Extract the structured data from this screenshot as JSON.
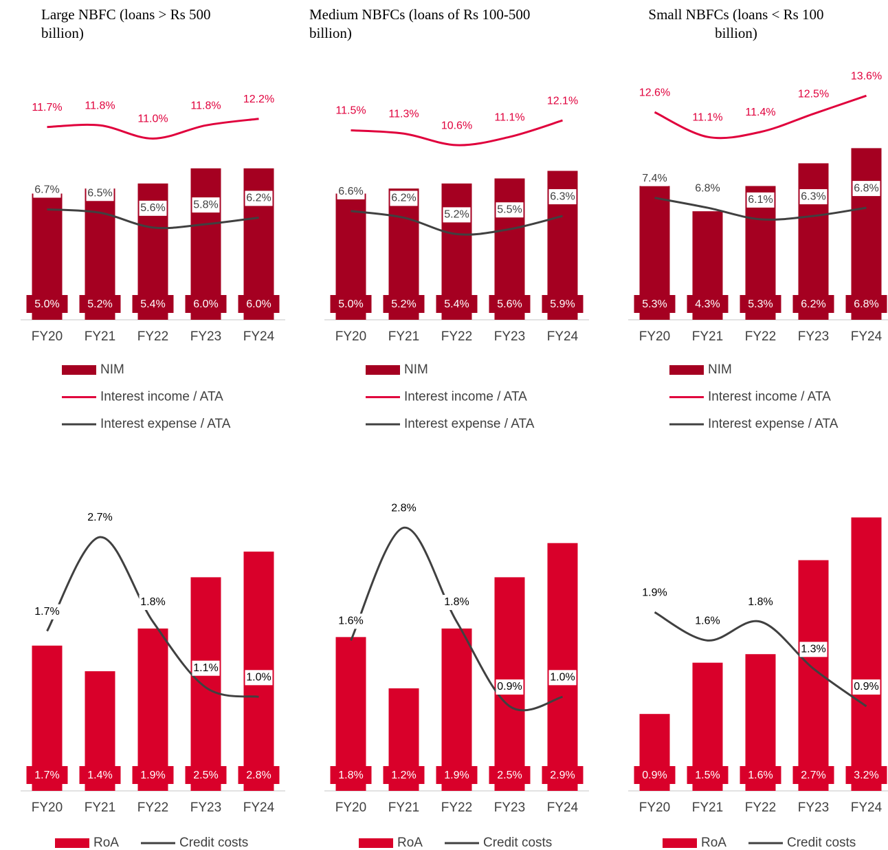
{
  "chart_data": [
    {
      "type": "bar",
      "title": "Large NBFC (loans > Rs 500 billion)",
      "categories": [
        "FY20",
        "FY21",
        "FY22",
        "FY23",
        "FY24"
      ],
      "ylim": [
        0,
        9.4
      ],
      "y2lim": [
        0,
        14.4
      ],
      "series": [
        {
          "name": "NIM",
          "type": "bar",
          "color": "#a50021",
          "values": [
            5.0,
            5.2,
            5.4,
            6.0,
            6.0
          ],
          "value_labels": [
            "5.0%",
            "5.2%",
            "5.4%",
            "6.0%",
            "6.0%"
          ]
        },
        {
          "name": "Interest income / ATA",
          "type": "line",
          "axis": "y2",
          "color": "#e0003c",
          "values": [
            11.7,
            11.8,
            11.0,
            11.8,
            12.2
          ],
          "value_labels": [
            "11.7%",
            "11.8%",
            "11.0%",
            "11.8%",
            "12.2%"
          ]
        },
        {
          "name": "Interest expense / ATA",
          "type": "line",
          "axis": "y2",
          "color": "#404040",
          "values": [
            6.7,
            6.5,
            5.6,
            5.8,
            6.2
          ],
          "value_labels": [
            "6.7%",
            "6.5%",
            "5.6%",
            "5.8%",
            "6.2%"
          ]
        }
      ]
    },
    {
      "type": "bar",
      "title": "Medium NBFCs (loans of Rs 100-500 billion)",
      "categories": [
        "FY20",
        "FY21",
        "FY22",
        "FY23",
        "FY24"
      ],
      "ylim": [
        0,
        9.4
      ],
      "y2lim": [
        0,
        14.4
      ],
      "series": [
        {
          "name": "NIM",
          "type": "bar",
          "color": "#a50021",
          "values": [
            5.0,
            5.2,
            5.4,
            5.6,
            5.9
          ],
          "value_labels": [
            "5.0%",
            "5.2%",
            "5.4%",
            "5.6%",
            "5.9%"
          ]
        },
        {
          "name": "Interest income / ATA",
          "type": "line",
          "axis": "y2",
          "color": "#e0003c",
          "values": [
            11.5,
            11.3,
            10.6,
            11.1,
            12.1
          ],
          "value_labels": [
            "11.5%",
            "11.3%",
            "10.6%",
            "11.1%",
            "12.1%"
          ]
        },
        {
          "name": "Interest expense / ATA",
          "type": "line",
          "axis": "y2",
          "color": "#404040",
          "values": [
            6.6,
            6.2,
            5.2,
            5.5,
            6.3
          ],
          "value_labels": [
            "6.6%",
            "6.2%",
            "5.2%",
            "5.5%",
            "6.3%"
          ]
        }
      ]
    },
    {
      "type": "bar",
      "title": "Small NBFCs (loans < Rs 100 billion)",
      "categories": [
        "FY20",
        "FY21",
        "FY22",
        "FY23",
        "FY24"
      ],
      "ylim": [
        0,
        9.4
      ],
      "y2lim": [
        0,
        14.4
      ],
      "series": [
        {
          "name": "NIM",
          "type": "bar",
          "color": "#a50021",
          "values": [
            5.3,
            4.3,
            5.3,
            6.2,
            6.8
          ],
          "value_labels": [
            "5.3%",
            "4.3%",
            "5.3%",
            "6.2%",
            "6.8%"
          ]
        },
        {
          "name": "Interest income / ATA",
          "type": "line",
          "axis": "y2",
          "color": "#e0003c",
          "values": [
            12.6,
            11.1,
            11.4,
            12.5,
            13.6
          ],
          "value_labels": [
            "12.6%",
            "11.1%",
            "11.4%",
            "12.5%",
            "13.6%"
          ]
        },
        {
          "name": "Interest expense / ATA",
          "type": "line",
          "axis": "y2",
          "color": "#404040",
          "values": [
            7.4,
            6.8,
            6.1,
            6.3,
            6.8
          ],
          "value_labels": [
            "7.4%",
            "6.8%",
            "6.1%",
            "6.3%",
            "6.8%"
          ]
        }
      ]
    },
    {
      "type": "bar",
      "categories": [
        "FY20",
        "FY21",
        "FY22",
        "FY23",
        "FY24"
      ],
      "ylim": [
        0,
        3.3
      ],
      "y2lim": [
        0,
        3.0
      ],
      "series": [
        {
          "name": "RoA",
          "type": "bar",
          "color": "#d9002a",
          "values": [
            1.7,
            1.4,
            1.9,
            2.5,
            2.8
          ],
          "value_labels": [
            "1.7%",
            "1.4%",
            "1.9%",
            "2.5%",
            "2.8%"
          ]
        },
        {
          "name": "Credit costs",
          "type": "line",
          "axis": "y2",
          "color": "#404040",
          "values": [
            1.7,
            2.7,
            1.8,
            1.1,
            1.0
          ],
          "value_labels": [
            "1.7%",
            "2.7%",
            "1.8%",
            "1.1%",
            "1.0%"
          ]
        }
      ]
    },
    {
      "type": "bar",
      "categories": [
        "FY20",
        "FY21",
        "FY22",
        "FY23",
        "FY24"
      ],
      "ylim": [
        0,
        3.3
      ],
      "y2lim": [
        0,
        3.0
      ],
      "series": [
        {
          "name": "RoA",
          "type": "bar",
          "color": "#d9002a",
          "values": [
            1.8,
            1.2,
            1.9,
            2.5,
            2.9
          ],
          "value_labels": [
            "1.8%",
            "1.2%",
            "1.9%",
            "2.5%",
            "2.9%"
          ]
        },
        {
          "name": "Credit costs",
          "type": "line",
          "axis": "y2",
          "color": "#404040",
          "values": [
            1.6,
            2.8,
            1.8,
            0.9,
            1.0
          ],
          "value_labels": [
            "1.6%",
            "2.8%",
            "1.8%",
            "0.9%",
            "1.0%"
          ]
        }
      ]
    },
    {
      "type": "bar",
      "categories": [
        "FY20",
        "FY21",
        "FY22",
        "FY23",
        "FY24"
      ],
      "ylim": [
        0,
        3.3
      ],
      "y2lim": [
        0,
        3.0
      ],
      "series": [
        {
          "name": "RoA",
          "type": "bar",
          "color": "#d9002a",
          "values": [
            0.9,
            1.5,
            1.6,
            2.7,
            3.2
          ],
          "value_labels": [
            "0.9%",
            "1.5%",
            "1.6%",
            "2.7%",
            "3.2%"
          ]
        },
        {
          "name": "Credit costs",
          "type": "line",
          "axis": "y2",
          "color": "#404040",
          "values": [
            1.9,
            1.6,
            1.8,
            1.3,
            0.9
          ],
          "value_labels": [
            "1.9%",
            "1.6%",
            "1.8%",
            "1.3%",
            "0.9%"
          ]
        }
      ]
    }
  ]
}
